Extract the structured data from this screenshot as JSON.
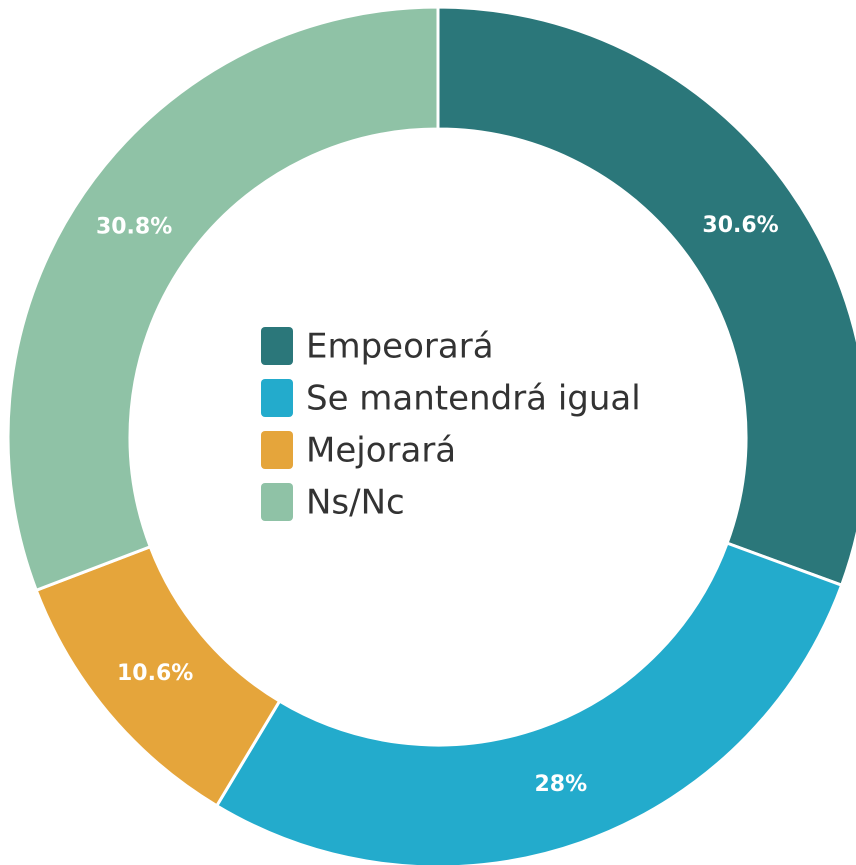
{
  "chart_data": {
    "type": "donut",
    "categories": [
      "Empeorará",
      "Se mantendrá igual",
      "Mejorará",
      "Ns/Nc"
    ],
    "values": [
      30.6,
      28,
      10.6,
      30.8
    ],
    "value_labels": [
      "30.6%",
      "28%",
      "10.6%",
      "30.8%"
    ],
    "colors": [
      "#2b777a",
      "#23abcc",
      "#e5a53b",
      "#8fc2a6"
    ],
    "legend": "center"
  }
}
